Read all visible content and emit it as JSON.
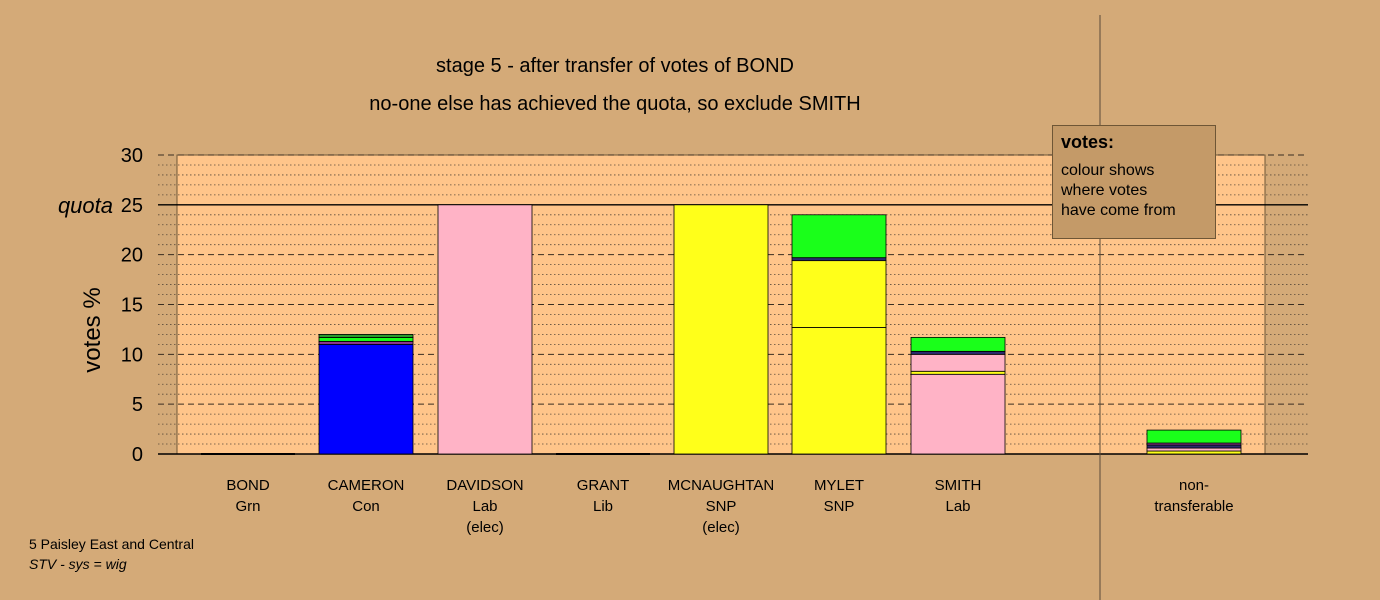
{
  "chart_data": {
    "type": "bar",
    "title": "stage 5 - after transfer of votes of BOND",
    "subtitle": "no-one else has achieved the quota, so exclude SMITH",
    "ylabel": "votes %",
    "ylim": [
      0,
      30
    ],
    "yticks": [
      0,
      5,
      10,
      15,
      20,
      25,
      30
    ],
    "quota": 25,
    "quota_label": "quota",
    "grid": true,
    "categories": [
      {
        "name": "BOND",
        "party": "Grn",
        "note": ""
      },
      {
        "name": "CAMERON",
        "party": "Con",
        "note": ""
      },
      {
        "name": "DAVIDSON",
        "party": "Lab",
        "note": "(elec)"
      },
      {
        "name": "GRANT",
        "party": "Lib",
        "note": ""
      },
      {
        "name": "MCNAUGHTAN",
        "party": "SNP",
        "note": "(elec)"
      },
      {
        "name": "MYLET",
        "party": "SNP",
        "note": ""
      },
      {
        "name": "SMITH",
        "party": "Lab",
        "note": ""
      },
      {
        "name": "non-",
        "party": "transferable",
        "note": ""
      }
    ],
    "stacks": [
      [],
      [
        {
          "value": 11.0,
          "color": "#0000ff"
        },
        {
          "value": 0.3,
          "color": "#8b3a8b"
        },
        {
          "value": 0.4,
          "color": "#1aff1a"
        },
        {
          "value": 0.3,
          "color": "#2e9c2e"
        }
      ],
      [
        {
          "value": 25.0,
          "color": "#ffb3c6"
        }
      ],
      [],
      [
        {
          "value": 25.0,
          "color": "#ffff1a"
        }
      ],
      [
        {
          "value": 12.7,
          "color": "#ffff1a"
        },
        {
          "value": 6.7,
          "color": "#ffff1a"
        },
        {
          "value": 0.3,
          "color": "#2a2a6e"
        },
        {
          "value": 4.3,
          "color": "#1aff1a"
        }
      ],
      [
        {
          "value": 8.0,
          "color": "#ffb3c6"
        },
        {
          "value": 0.3,
          "color": "#ffff1a"
        },
        {
          "value": 1.7,
          "color": "#ffb3c6"
        },
        {
          "value": 0.3,
          "color": "#2a2a6e"
        },
        {
          "value": 1.4,
          "color": "#1aff1a"
        }
      ],
      [
        {
          "value": 0.3,
          "color": "#ffff1a"
        },
        {
          "value": 0.3,
          "color": "#ffb3c6"
        },
        {
          "value": 0.3,
          "color": "#2a2a6e"
        },
        {
          "value": 0.2,
          "color": "#8b3a8b"
        },
        {
          "value": 1.3,
          "color": "#1aff1a"
        }
      ]
    ]
  },
  "legend": {
    "title": "votes:",
    "text": "colour shows\nwhere votes\nhave come from"
  },
  "footer": {
    "line1": "5 Paisley East and Central",
    "line2": "STV - sys = wig"
  },
  "colors": {
    "background": "#d4aa78",
    "plot_bg": "#ffc58a"
  }
}
